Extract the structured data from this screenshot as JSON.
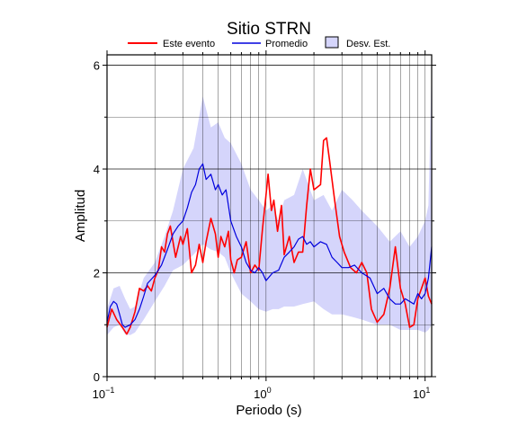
{
  "chart_data": {
    "type": "line",
    "title": "Sitio STRN",
    "xlabel": "Periodo (s)",
    "ylabel": "Amplitud",
    "xscale": "log",
    "xlim": [
      0.1,
      11
    ],
    "ylim": [
      0,
      6.2
    ],
    "x_ticks": [
      {
        "value": 0.1,
        "base": "10",
        "exp": "−1"
      },
      {
        "value": 1,
        "base": "10",
        "exp": "0"
      },
      {
        "value": 10,
        "base": "10",
        "exp": "1"
      }
    ],
    "y_ticks": [
      0,
      2,
      4,
      6
    ],
    "grid": true,
    "legend_position": "top",
    "legend": [
      {
        "label": "Este evento",
        "kind": "line",
        "color": "#ff0000"
      },
      {
        "label": "Promedio",
        "kind": "line",
        "color": "#0000dd"
      },
      {
        "label": "Desv. Est.",
        "kind": "band",
        "color": "#d5d5fb"
      }
    ],
    "series": [
      {
        "id": "este",
        "color": "#ff0000",
        "x": [
          0.1,
          0.107,
          0.115,
          0.125,
          0.133,
          0.14,
          0.15,
          0.16,
          0.17,
          0.18,
          0.19,
          0.2,
          0.21,
          0.22,
          0.23,
          0.24,
          0.25,
          0.27,
          0.29,
          0.3,
          0.32,
          0.34,
          0.36,
          0.38,
          0.4,
          0.42,
          0.45,
          0.48,
          0.5,
          0.52,
          0.55,
          0.58,
          0.6,
          0.63,
          0.66,
          0.7,
          0.75,
          0.8,
          0.85,
          0.9,
          0.95,
          1.0,
          1.03,
          1.08,
          1.12,
          1.18,
          1.25,
          1.3,
          1.4,
          1.5,
          1.6,
          1.7,
          1.8,
          1.9,
          2.0,
          2.2,
          2.3,
          2.4,
          2.5,
          2.7,
          2.9,
          3.1,
          3.4,
          3.7,
          4.0,
          4.3,
          4.6,
          5.0,
          5.5,
          6.0,
          6.5,
          7.0,
          7.5,
          8.0,
          8.5,
          9.0,
          9.5,
          10.0,
          10.5,
          11.0
        ],
        "values": [
          0.95,
          1.3,
          1.1,
          0.95,
          0.82,
          0.95,
          1.25,
          1.7,
          1.65,
          1.75,
          1.65,
          1.9,
          2.05,
          2.5,
          2.4,
          2.75,
          2.9,
          2.3,
          2.7,
          2.55,
          2.85,
          2.0,
          2.15,
          2.55,
          2.2,
          2.6,
          3.05,
          2.75,
          2.3,
          2.7,
          2.5,
          2.8,
          2.25,
          2.0,
          2.25,
          2.3,
          2.6,
          2.0,
          2.15,
          2.05,
          2.85,
          3.5,
          3.9,
          3.2,
          3.4,
          2.8,
          3.3,
          2.35,
          2.7,
          2.2,
          2.4,
          2.4,
          3.3,
          4.0,
          3.6,
          3.7,
          4.55,
          4.6,
          4.2,
          3.4,
          2.7,
          2.4,
          2.1,
          2.0,
          2.2,
          2.0,
          1.3,
          1.05,
          1.2,
          1.7,
          2.5,
          1.7,
          1.4,
          0.95,
          1.0,
          1.5,
          1.7,
          1.9,
          1.55,
          1.4
        ]
      },
      {
        "id": "promedio",
        "color": "#0000dd",
        "x": [
          0.1,
          0.105,
          0.11,
          0.115,
          0.12,
          0.125,
          0.13,
          0.14,
          0.15,
          0.16,
          0.17,
          0.18,
          0.2,
          0.22,
          0.24,
          0.26,
          0.28,
          0.3,
          0.32,
          0.34,
          0.36,
          0.38,
          0.4,
          0.42,
          0.45,
          0.48,
          0.5,
          0.53,
          0.56,
          0.6,
          0.65,
          0.7,
          0.75,
          0.8,
          0.85,
          0.9,
          0.95,
          1.0,
          1.1,
          1.2,
          1.3,
          1.4,
          1.5,
          1.6,
          1.7,
          1.8,
          1.9,
          2.0,
          2.2,
          2.4,
          2.6,
          2.8,
          3.0,
          3.3,
          3.6,
          4.0,
          4.5,
          5.0,
          5.5,
          6.0,
          6.5,
          7.0,
          7.5,
          8.0,
          8.5,
          9.0,
          9.5,
          10.0,
          10.5,
          11.0
        ],
        "values": [
          1.05,
          1.35,
          1.45,
          1.4,
          1.2,
          1.0,
          0.95,
          1.0,
          1.1,
          1.3,
          1.55,
          1.8,
          1.95,
          2.15,
          2.45,
          2.75,
          2.9,
          3.0,
          3.25,
          3.55,
          3.7,
          4.0,
          4.1,
          3.8,
          3.9,
          3.6,
          3.7,
          3.5,
          3.6,
          3.0,
          2.7,
          2.5,
          2.2,
          2.05,
          2.0,
          2.1,
          2.0,
          1.85,
          2.0,
          2.05,
          2.3,
          2.4,
          2.5,
          2.65,
          2.7,
          2.55,
          2.6,
          2.5,
          2.6,
          2.55,
          2.3,
          2.2,
          2.1,
          2.1,
          2.15,
          2.0,
          1.9,
          1.6,
          1.7,
          1.5,
          1.4,
          1.4,
          1.5,
          1.45,
          1.4,
          1.6,
          1.5,
          1.6,
          1.9,
          2.5
        ]
      }
    ],
    "band": {
      "color": "#d5d5fb",
      "x": [
        0.1,
        0.11,
        0.12,
        0.13,
        0.14,
        0.15,
        0.17,
        0.2,
        0.23,
        0.26,
        0.3,
        0.35,
        0.4,
        0.45,
        0.5,
        0.55,
        0.6,
        0.7,
        0.8,
        0.9,
        1.0,
        1.1,
        1.2,
        1.3,
        1.5,
        1.7,
        2.0,
        2.3,
        2.6,
        3.0,
        3.5,
        4.0,
        5.0,
        6.0,
        7.0,
        8.0,
        9.0,
        10.0,
        10.5,
        11.0
      ],
      "upper": [
        1.3,
        1.7,
        1.75,
        1.5,
        1.3,
        1.35,
        1.9,
        2.2,
        2.7,
        3.2,
        4.0,
        4.4,
        5.4,
        4.8,
        4.9,
        4.6,
        4.5,
        4.1,
        3.6,
        3.4,
        3.2,
        3.3,
        3.0,
        3.4,
        3.5,
        4.0,
        3.4,
        3.5,
        3.2,
        3.6,
        3.4,
        3.2,
        2.9,
        2.6,
        2.8,
        2.5,
        2.7,
        3.0,
        3.3,
        6.0
      ],
      "lower": [
        0.8,
        0.95,
        1.0,
        0.82,
        0.8,
        0.85,
        1.1,
        1.45,
        1.75,
        2.05,
        2.15,
        2.35,
        2.55,
        2.45,
        2.4,
        2.3,
        2.0,
        1.6,
        1.45,
        1.3,
        1.25,
        1.3,
        1.3,
        1.35,
        1.35,
        1.4,
        1.45,
        1.3,
        1.2,
        1.2,
        1.15,
        1.1,
        1.0,
        1.0,
        0.9,
        0.9,
        0.9,
        0.85,
        0.9,
        1.0
      ]
    }
  }
}
